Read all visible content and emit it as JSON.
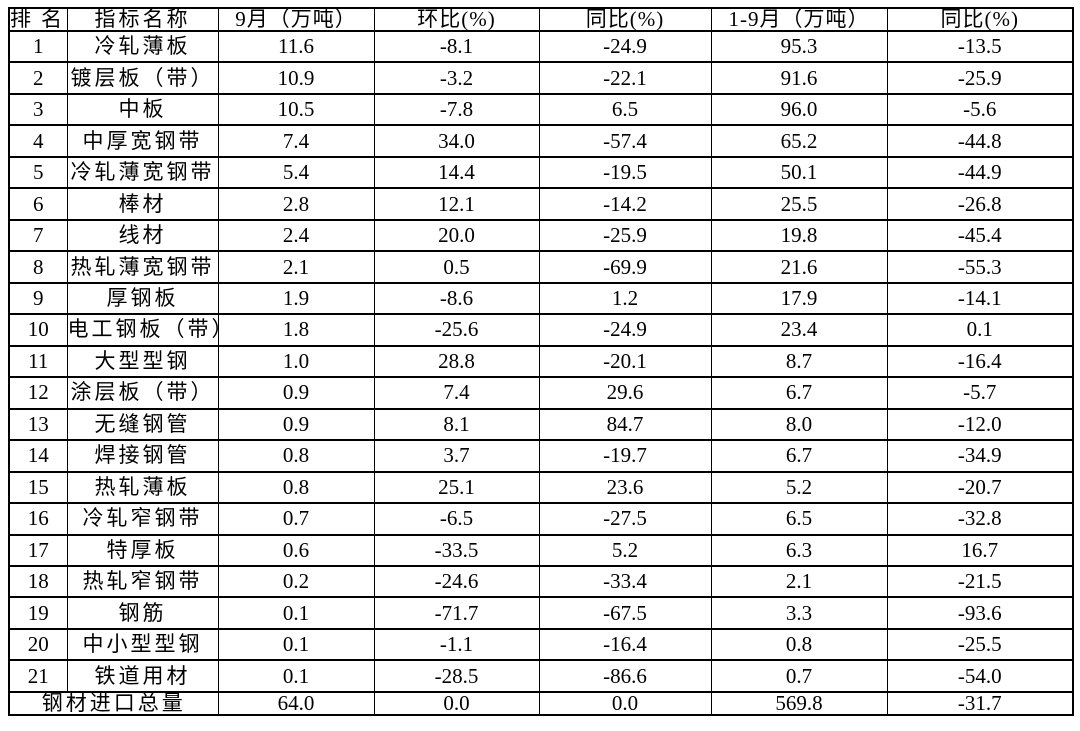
{
  "page": {
    "background_color": "#ffffff",
    "border_color": "#000000",
    "text_color": "#000000"
  },
  "chart_data": {
    "type": "table",
    "columns": [
      "排名",
      "指标名称",
      "9月（万吨）",
      "环比(%)",
      "同比(%)",
      "1-9月（万吨）",
      "同比(%)"
    ],
    "rows": [
      [
        "1",
        "冷轧薄板",
        "11.6",
        "-8.1",
        "-24.9",
        "95.3",
        "-13.5"
      ],
      [
        "2",
        "镀层板（带）",
        "10.9",
        "-3.2",
        "-22.1",
        "91.6",
        "-25.9"
      ],
      [
        "3",
        "中板",
        "10.5",
        "-7.8",
        "6.5",
        "96.0",
        "-5.6"
      ],
      [
        "4",
        "中厚宽钢带",
        "7.4",
        "34.0",
        "-57.4",
        "65.2",
        "-44.8"
      ],
      [
        "5",
        "冷轧薄宽钢带",
        "5.4",
        "14.4",
        "-19.5",
        "50.1",
        "-44.9"
      ],
      [
        "6",
        "棒材",
        "2.8",
        "12.1",
        "-14.2",
        "25.5",
        "-26.8"
      ],
      [
        "7",
        "线材",
        "2.4",
        "20.0",
        "-25.9",
        "19.8",
        "-45.4"
      ],
      [
        "8",
        "热轧薄宽钢带",
        "2.1",
        "0.5",
        "-69.9",
        "21.6",
        "-55.3"
      ],
      [
        "9",
        "厚钢板",
        "1.9",
        "-8.6",
        "1.2",
        "17.9",
        "-14.1"
      ],
      [
        "10",
        "电工钢板（带）",
        "1.8",
        "-25.6",
        "-24.9",
        "23.4",
        "0.1"
      ],
      [
        "11",
        "大型型钢",
        "1.0",
        "28.8",
        "-20.1",
        "8.7",
        "-16.4"
      ],
      [
        "12",
        "涂层板（带）",
        "0.9",
        "7.4",
        "29.6",
        "6.7",
        "-5.7"
      ],
      [
        "13",
        "无缝钢管",
        "0.9",
        "8.1",
        "84.7",
        "8.0",
        "-12.0"
      ],
      [
        "14",
        "焊接钢管",
        "0.8",
        "3.7",
        "-19.7",
        "6.7",
        "-34.9"
      ],
      [
        "15",
        "热轧薄板",
        "0.8",
        "25.1",
        "23.6",
        "5.2",
        "-20.7"
      ],
      [
        "16",
        "冷轧窄钢带",
        "0.7",
        "-6.5",
        "-27.5",
        "6.5",
        "-32.8"
      ],
      [
        "17",
        "特厚板",
        "0.6",
        "-33.5",
        "5.2",
        "6.3",
        "16.7"
      ],
      [
        "18",
        "热轧窄钢带",
        "0.2",
        "-24.6",
        "-33.4",
        "2.1",
        "-21.5"
      ],
      [
        "19",
        "钢筋",
        "0.1",
        "-71.7",
        "-67.5",
        "3.3",
        "-93.6"
      ],
      [
        "20",
        "中小型型钢",
        "0.1",
        "-1.1",
        "-16.4",
        "0.8",
        "-25.5"
      ],
      [
        "21",
        "铁道用材",
        "0.1",
        "-28.5",
        "-86.6",
        "0.7",
        "-54.0"
      ]
    ],
    "total_row": [
      "钢材进口总量",
      "64.0",
      "0.0",
      "0.0",
      "569.8",
      "-31.7"
    ],
    "title": ""
  }
}
